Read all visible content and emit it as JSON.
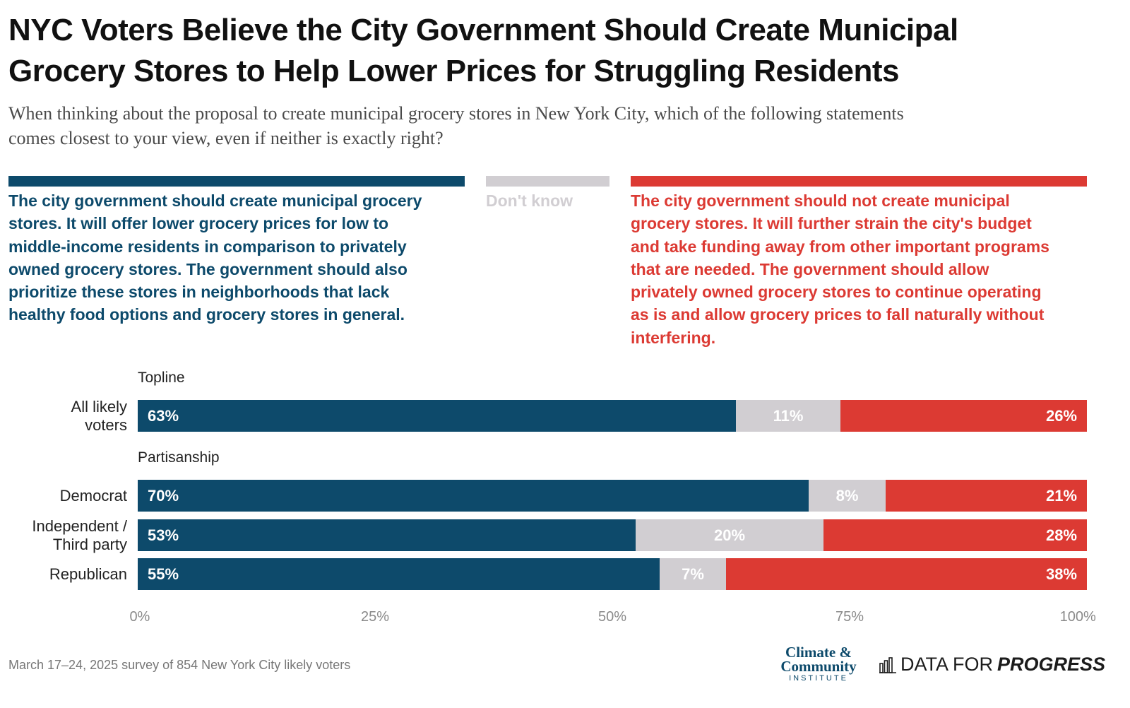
{
  "header": {
    "title_lines": [
      "NYC Voters Believe the City Government Should Create Municipal",
      "Grocery Stores to Help Lower Prices for Struggling Residents"
    ],
    "subtitle_lines": [
      "When thinking about the proposal to create municipal grocery stores in New York City, which of the following statements",
      "comes closest to your view, even if neither is exactly right?"
    ]
  },
  "legend": {
    "support": {
      "lines": [
        "The city government should create municipal grocery",
        "stores. It will offer lower grocery prices for low to",
        "middle-income residents in comparison to privately",
        "owned grocery stores. The government should also",
        "prioritize these stores in neighborhoods that lack",
        "healthy food options and grocery stores in general."
      ]
    },
    "dont_know": {
      "label": "Don't know"
    },
    "oppose": {
      "lines": [
        "The city government should not create municipal",
        "grocery stores. It will further strain the city's budget",
        "and take funding away from other important programs",
        "that are needed. The government should allow",
        "privately owned grocery stores to continue operating",
        "as is and allow grocery prices to fall naturally without",
        "interfering."
      ]
    }
  },
  "colors": {
    "support": "#0d4a6b",
    "dont_know": "#d1ced2",
    "oppose": "#dc3a33"
  },
  "chart_data": {
    "type": "bar",
    "orientation": "horizontal",
    "stacked": true,
    "groups": [
      {
        "name": "Topline",
        "rows": [
          {
            "label_lines": [
              "All likely",
              "voters"
            ],
            "values": [
              63,
              11,
              26
            ],
            "value_labels": [
              "63%",
              "11%",
              "26%"
            ]
          }
        ]
      },
      {
        "name": "Partisanship",
        "rows": [
          {
            "label_lines": [
              "Democrat"
            ],
            "values": [
              70,
              8,
              21
            ],
            "value_labels": [
              "70%",
              "8%",
              "21%"
            ]
          },
          {
            "label_lines": [
              "Independent /",
              "Third party"
            ],
            "values": [
              53,
              20,
              28
            ],
            "value_labels": [
              "53%",
              "20%",
              "28%"
            ]
          },
          {
            "label_lines": [
              "Republican"
            ],
            "values": [
              55,
              7,
              38
            ],
            "value_labels": [
              "55%",
              "7%",
              "38%"
            ]
          }
        ]
      }
    ],
    "series": [
      {
        "name": "Should create municipal grocery stores"
      },
      {
        "name": "Don't know"
      },
      {
        "name": "Should not create municipal grocery stores"
      }
    ],
    "xlim": [
      0,
      100
    ],
    "xticks": [
      0,
      25,
      50,
      75,
      100
    ],
    "xtick_labels": [
      "0%",
      "25%",
      "50%",
      "75%",
      "100%"
    ]
  },
  "footer": {
    "source": "March 17–24, 2025 survey of 854 New York City likely voters",
    "logo_cci_lines": [
      "Climate &",
      "Community",
      "INSTITUTE"
    ],
    "logo_dfp_part1": "DATA FOR",
    "logo_dfp_part2": "PROGRESS"
  }
}
